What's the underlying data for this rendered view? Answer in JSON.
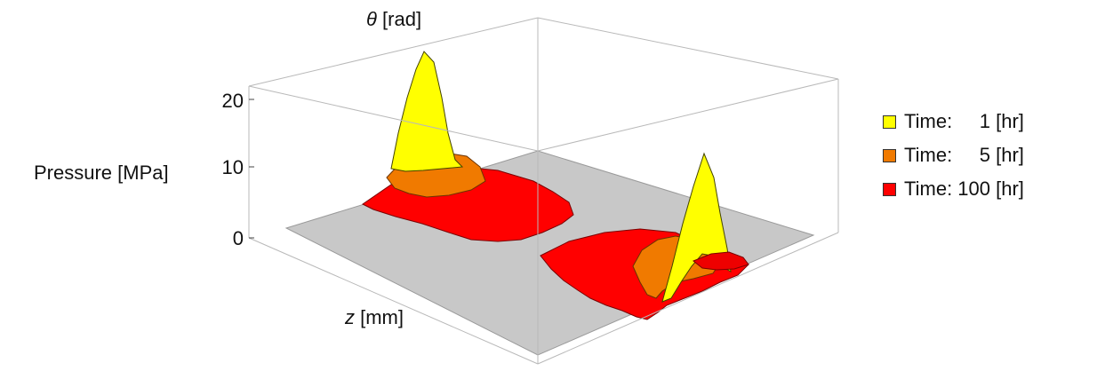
{
  "chart_data": {
    "type": "surface3d",
    "zlabel": "Pressure [MPa]",
    "zlabel_unit_note": "",
    "theta_label_symbol": "θ",
    "theta_label_unit": " [rad]",
    "zaxis_label_symbol": "z",
    "zaxis_label_unit": " [mm]",
    "pressure_ticks": [
      "0",
      "10",
      "20"
    ],
    "pressure_range": [
      0,
      22
    ],
    "box": true,
    "grid": false,
    "legend_position": "right",
    "series": [
      {
        "name": "Time:     1 [hr]",
        "color": "#ffff00",
        "peaks": [
          {
            "location": "front-left",
            "peak_pressure": 22
          },
          {
            "location": "back-right",
            "peak_pressure": 16
          }
        ]
      },
      {
        "name": "Time:     5 [hr]",
        "color": "#f07a00",
        "peaks": [
          {
            "location": "front-left",
            "peak_pressure": 4
          },
          {
            "location": "back-right",
            "peak_pressure": 3
          }
        ]
      },
      {
        "name": "Time: 100 [hr]",
        "color": "#ff0000",
        "peaks": [
          {
            "location": "front-left",
            "peak_pressure": 2
          },
          {
            "location": "back-right",
            "peak_pressure": 2
          }
        ]
      }
    ],
    "base_plane_color": "#c8c8c8"
  }
}
